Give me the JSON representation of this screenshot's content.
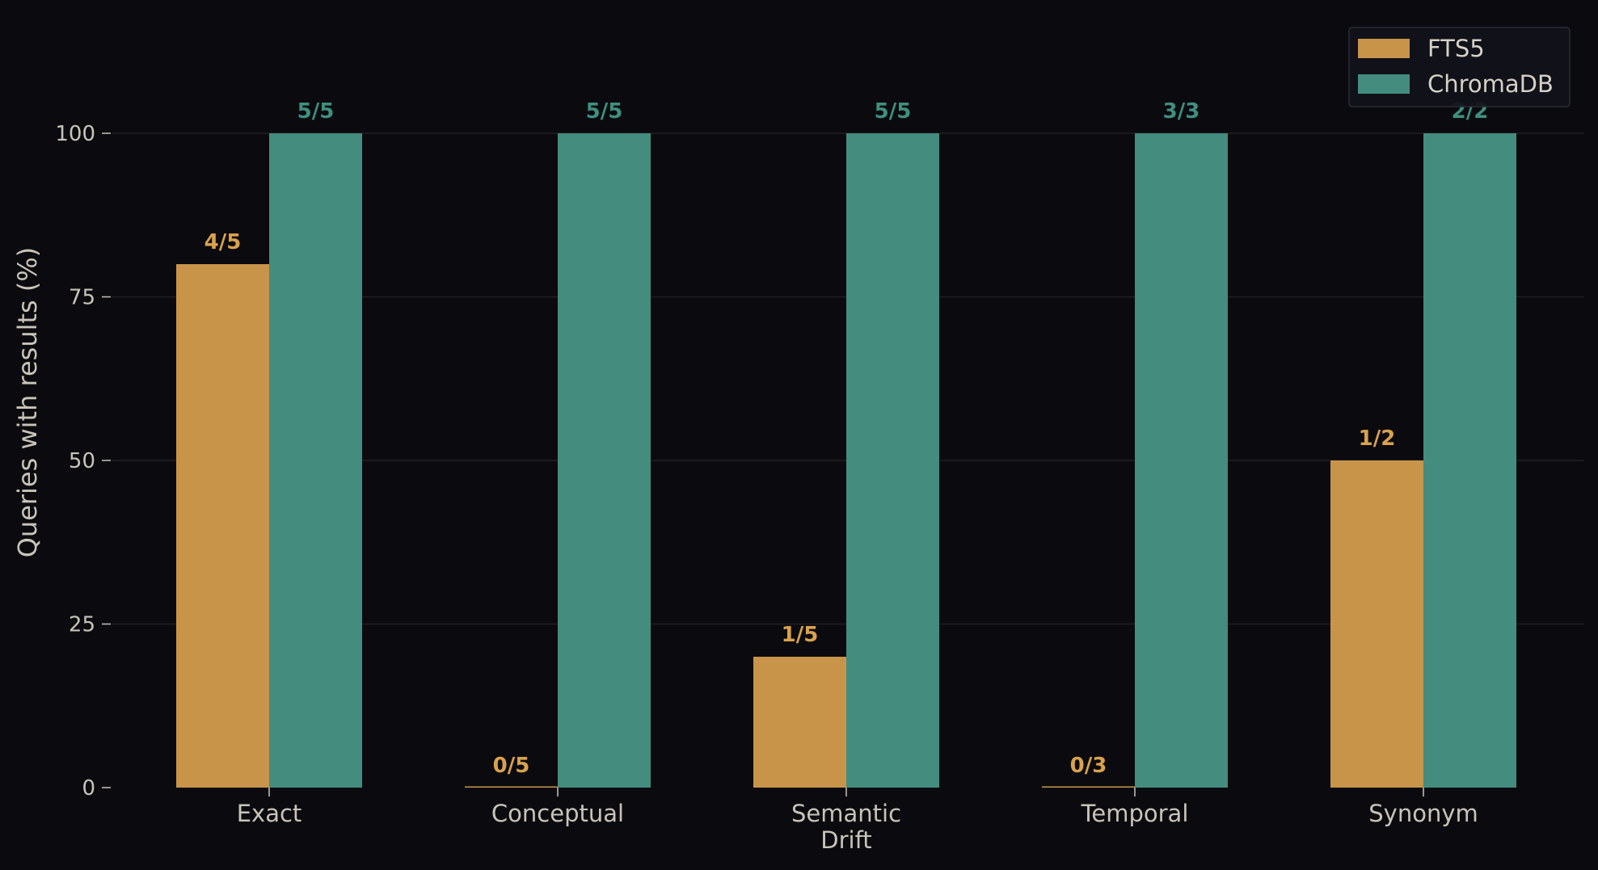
{
  "chart_data": {
    "type": "bar",
    "title": "",
    "xlabel": "",
    "ylabel": "Queries with results (%)",
    "ylim": [
      0,
      100
    ],
    "yticks": [
      0,
      25,
      50,
      75,
      100
    ],
    "grid": "horizontal",
    "legend_position": "top-right",
    "categories": [
      "Exact",
      "Conceptual",
      "Semantic Drift",
      "Temporal",
      "Synonym"
    ],
    "series": [
      {
        "name": "FTS5",
        "color": "#c8944a",
        "values": [
          80,
          0,
          20,
          0,
          50
        ],
        "labels": [
          "4/5",
          "0/5",
          "1/5",
          "0/3",
          "1/2"
        ],
        "label_color": "#d9a14e"
      },
      {
        "name": "ChromaDB",
        "color": "#448c7e",
        "values": [
          100,
          100,
          100,
          100,
          100
        ],
        "labels": [
          "5/5",
          "5/5",
          "5/5",
          "3/3",
          "2/2"
        ],
        "label_color": "#3f8f7f"
      }
    ]
  }
}
